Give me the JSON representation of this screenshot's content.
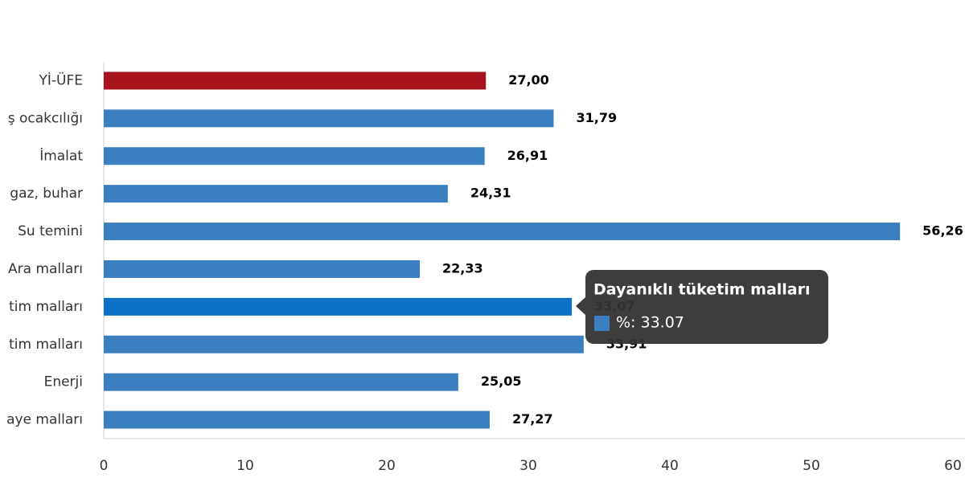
{
  "chart_data": {
    "type": "bar",
    "orientation": "horizontal",
    "categories": [
      "Yİ-ÜFE",
      "ş ocakcılığı",
      "İmalat",
      "gaz, buhar",
      "Su temini",
      "Ara malları",
      "tim malları",
      "tim malları",
      "Enerji",
      "aye malları"
    ],
    "series": [
      {
        "name": "%",
        "colors": [
          "#a8141c",
          "#3a7fbf",
          "#3a7fbf",
          "#3a7fbf",
          "#3a7fbf",
          "#3a7fbf",
          "#0b72c8",
          "#3a7fbf",
          "#3a7fbf",
          "#3a7fbf"
        ],
        "values": [
          27.0,
          31.79,
          26.91,
          24.31,
          56.26,
          22.33,
          33.07,
          33.91,
          25.05,
          27.27
        ],
        "value_labels": [
          "27,00",
          "31,79",
          "26,91",
          "24,31",
          "56,26",
          "22,33",
          "33,07",
          "33,91",
          "25,05",
          "27,27"
        ]
      }
    ],
    "xlim": [
      0,
      60
    ],
    "xticks": [
      0,
      10,
      20,
      30,
      40,
      50,
      60
    ],
    "tooltip": {
      "title": "Dayanıklı tüketim malları",
      "text": "%: 33.07",
      "color": "#3a7fbf"
    }
  }
}
